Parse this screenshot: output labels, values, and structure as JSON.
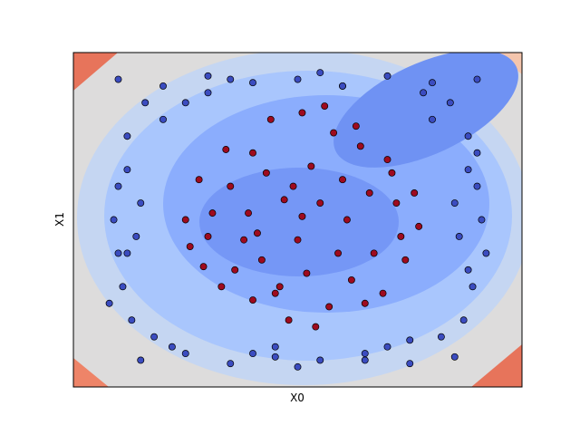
{
  "chart_data": {
    "type": "scatter",
    "xlabel": "X0",
    "ylabel": "X1",
    "xlim": [
      0,
      100
    ],
    "ylim": [
      0,
      100
    ],
    "series": [
      {
        "color": "#3b4cc0",
        "x": [
          10,
          20,
          30,
          40,
          50,
          60,
          70,
          80,
          90,
          15,
          25,
          35,
          45,
          55,
          65,
          75,
          85,
          12,
          88,
          10,
          90,
          14,
          86,
          11,
          89,
          13,
          87,
          9,
          91,
          16,
          84,
          18,
          82,
          12,
          88,
          20,
          80,
          10,
          90,
          22,
          78,
          15,
          85,
          30,
          70,
          40,
          60,
          50,
          25,
          75,
          35,
          65,
          45,
          55,
          92,
          8,
          88,
          12
        ],
        "y": [
          92,
          90,
          93,
          91,
          92,
          90,
          93,
          91,
          92,
          8,
          10,
          7,
          9,
          8,
          10,
          7,
          9,
          75,
          75,
          60,
          60,
          45,
          45,
          30,
          30,
          20,
          20,
          50,
          50,
          85,
          85,
          15,
          15,
          65,
          35,
          80,
          80,
          40,
          70,
          12,
          88,
          55,
          55,
          88,
          12,
          10,
          90,
          6,
          85,
          14,
          92,
          8,
          12,
          94,
          40,
          25,
          65,
          40
        ]
      },
      {
        "color": "#9e0a1f",
        "x": [
          51,
          40,
          62,
          30,
          72,
          45,
          58,
          35,
          67,
          25,
          77,
          51,
          42,
          60,
          33,
          70,
          48,
          55,
          38,
          64,
          28,
          74,
          50,
          44,
          57,
          36,
          66,
          31,
          69,
          53,
          47,
          59,
          40,
          63,
          26,
          76,
          52,
          41,
          61,
          34,
          71,
          46,
          56,
          39,
          65,
          29,
          73,
          49,
          54,
          43
        ],
        "y": [
          51,
          70,
          32,
          45,
          55,
          28,
          76,
          60,
          40,
          50,
          48,
          82,
          38,
          62,
          30,
          68,
          20,
          55,
          44,
          72,
          62,
          38,
          44,
          80,
          24,
          35,
          58,
          52,
          28,
          66,
          56,
          40,
          26,
          78,
          42,
          58,
          34,
          46,
          50,
          71,
          64,
          30,
          84,
          52,
          25,
          36,
          45,
          60,
          18,
          64
        ]
      }
    ]
  }
}
